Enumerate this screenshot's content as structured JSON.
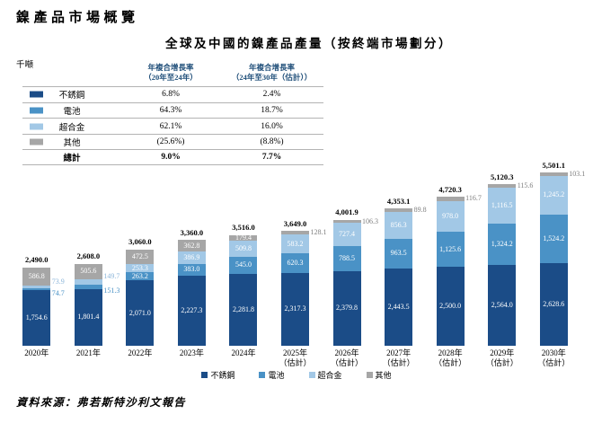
{
  "page": {
    "title": "鎳產品市場概覽",
    "unit_label": "千噸",
    "source": "資料來源：弗若斯特沙利文報告"
  },
  "cagr_table": {
    "headers": [
      {
        "line1": "年複合增長率",
        "line2": "（20年至24年）"
      },
      {
        "line1": "年複合增長率",
        "line2": "（24年至30年（估計））"
      }
    ],
    "rows": [
      {
        "label": "不銹鋼",
        "swatch": "#1b4c87",
        "cagr_20_24": "6.8%",
        "cagr_24_30": "2.4%",
        "bold": false
      },
      {
        "label": "電池",
        "swatch": "#4a92c6",
        "cagr_20_24": "64.3%",
        "cagr_24_30": "18.7%",
        "bold": false
      },
      {
        "label": "超合金",
        "swatch": "#a2c8e6",
        "cagr_20_24": "62.1%",
        "cagr_24_30": "16.0%",
        "bold": false
      },
      {
        "label": "其他",
        "swatch": "#a6a6a6",
        "cagr_20_24": "(25.6%)",
        "cagr_24_30": "(8.8%)",
        "bold": false
      },
      {
        "label": "總計",
        "swatch": "",
        "cagr_20_24": "9.0%",
        "cagr_24_30": "7.7%",
        "bold": true
      }
    ]
  },
  "chart_data": {
    "type": "bar",
    "stacked": true,
    "title": "全球及中國的鎳產品產量（按終端市場劃分）",
    "ylabel": "千噸",
    "grid": false,
    "legend_position": "bottom",
    "categories": [
      {
        "label": "2020年",
        "sub": ""
      },
      {
        "label": "2021年",
        "sub": ""
      },
      {
        "label": "2022年",
        "sub": ""
      },
      {
        "label": "2023年",
        "sub": ""
      },
      {
        "label": "2024年",
        "sub": ""
      },
      {
        "label": "2025年",
        "sub": "（估計）"
      },
      {
        "label": "2026年",
        "sub": "（估計）"
      },
      {
        "label": "2027年",
        "sub": "（估計）"
      },
      {
        "label": "2028年",
        "sub": "（估計）"
      },
      {
        "label": "2029年",
        "sub": "（估計）"
      },
      {
        "label": "2030年",
        "sub": "（估計）"
      }
    ],
    "series": [
      {
        "name": "不銹鋼",
        "color": "#1b4c87",
        "outside_label_color": "#1b4c87",
        "values": [
          1754.6,
          1801.4,
          2071.0,
          2227.3,
          2281.8,
          2317.3,
          2379.8,
          2443.5,
          2500.0,
          2564.0,
          2628.6
        ]
      },
      {
        "name": "電池",
        "color": "#4a92c6",
        "outside_label_color": "#4a92c6",
        "values": [
          74.7,
          151.3,
          263.2,
          383.0,
          545.0,
          620.3,
          788.5,
          963.5,
          1125.6,
          1324.2,
          1524.2
        ]
      },
      {
        "name": "超合金",
        "color": "#a2c8e6",
        "outside_label_color": "#8db6da",
        "values": [
          73.9,
          149.7,
          253.3,
          386.9,
          509.8,
          583.2,
          727.4,
          856.3,
          978.0,
          1116.5,
          1245.2
        ]
      },
      {
        "name": "其他",
        "color": "#a6a6a6",
        "outside_label_color": "#7f7f7f",
        "values": [
          586.8,
          505.6,
          472.5,
          362.8,
          179.4,
          128.1,
          106.3,
          89.8,
          116.7,
          115.6,
          103.1
        ]
      }
    ],
    "totals": [
      2490.0,
      2608.0,
      3060.0,
      3360.0,
      3516.0,
      3649.0,
      4001.9,
      4353.1,
      4720.3,
      5120.3,
      5501.1
    ]
  }
}
